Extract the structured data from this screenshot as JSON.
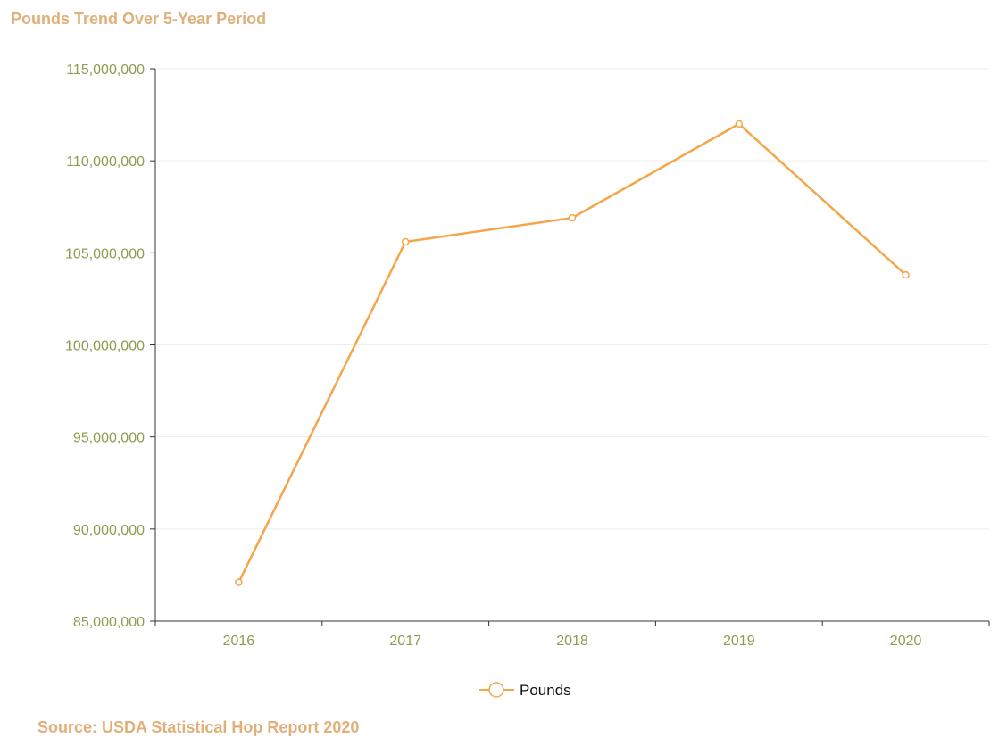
{
  "chart_data": {
    "type": "line",
    "title": "Pounds Trend Over 5-Year Period",
    "source": "Source: USDA Statistical Hop Report 2020",
    "categories": [
      "2016",
      "2017",
      "2018",
      "2019",
      "2020"
    ],
    "series": [
      {
        "name": "Pounds",
        "values": [
          87100000,
          105600000,
          106900000,
          112000000,
          103800000
        ]
      }
    ],
    "ylim": [
      85000000,
      115000000
    ],
    "yticks": [
      85000000,
      90000000,
      95000000,
      100000000,
      105000000,
      110000000,
      115000000
    ],
    "ytick_labels": [
      "85,000,000",
      "90,000,000",
      "95,000,000",
      "100,000,000",
      "105,000,000",
      "110,000,000",
      "115,000,000"
    ],
    "xlabel": "",
    "ylabel": "",
    "grid": true,
    "legend_position": "bottom-center",
    "colors": {
      "series": "#f5a54a",
      "axis_text": "#8a9e4e",
      "title": "#e0b07a",
      "grid": "#eeeeee",
      "axis": "#333333"
    }
  }
}
